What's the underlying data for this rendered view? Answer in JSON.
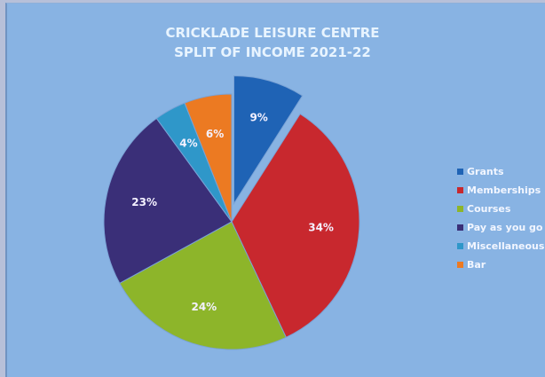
{
  "chart_data": {
    "type": "pie",
    "title": "CRICKLADE LEISURE CENTRE",
    "subtitle": "SPLIT OF INCOME 2021-22",
    "legend_position": "right",
    "exploded": [
      "Grants"
    ],
    "slices": [
      {
        "name": "Grants",
        "value": 9,
        "label": "9%",
        "color": "#1f63b5"
      },
      {
        "name": "Memberships",
        "value": 34,
        "label": "34%",
        "color": "#c8282e"
      },
      {
        "name": "Courses",
        "value": 24,
        "label": "24%",
        "color": "#8db52a"
      },
      {
        "name": "Pay as you go",
        "value": 23,
        "label": "23%",
        "color": "#3a2f78"
      },
      {
        "name": "Miscellaneous",
        "value": 4,
        "label": "4%",
        "color": "#2f97c9"
      },
      {
        "name": "Bar",
        "value": 6,
        "label": "6%",
        "color": "#ec7a22"
      }
    ]
  }
}
